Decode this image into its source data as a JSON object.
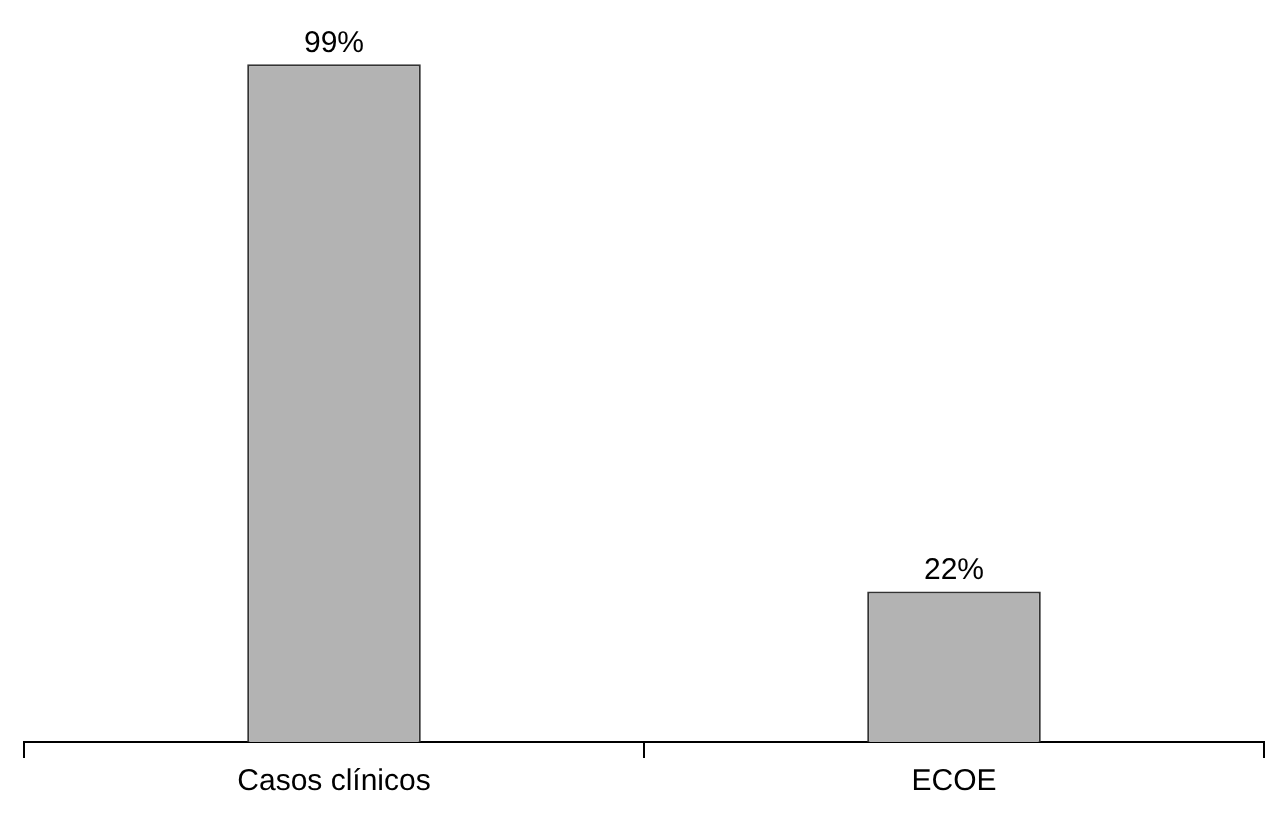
{
  "chart_data": {
    "type": "bar",
    "tick_labels": "x",
    "categories": [
      "Casos clínicos",
      "ECOE"
    ],
    "values": [
      99,
      22
    ],
    "value_labels": [
      "99%",
      "22%"
    ],
    "color": "#b3b3b3",
    "grid": false,
    "legend": false
  }
}
